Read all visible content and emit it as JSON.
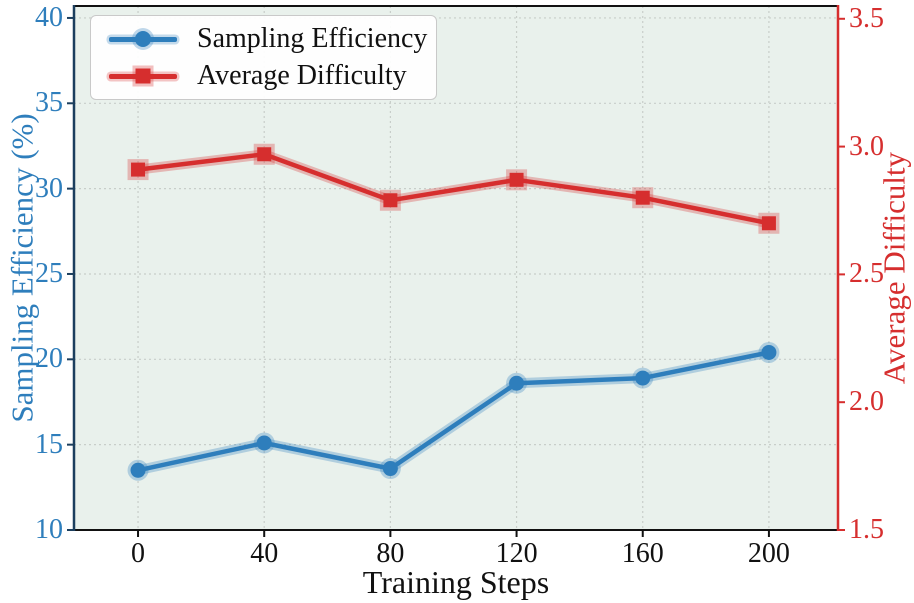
{
  "figure": {
    "background": "#ffffff",
    "plot_background": "#e9f1ec",
    "grid_color": "#c8cec9",
    "top_spine_color": "#111111",
    "bottom_spine_color": "#111111",
    "x_tick_color": "#111111"
  },
  "chart_data": {
    "type": "line",
    "title": "",
    "xlabel": "Training Steps",
    "x": [
      0,
      40,
      80,
      120,
      160,
      200
    ],
    "x_tick_labels": [
      "0",
      "40",
      "80",
      "120",
      "160",
      "200"
    ],
    "x_range": [
      -20.3,
      221.9
    ],
    "grid": true,
    "legend_position": "upper left",
    "left_axis": {
      "label": "Sampling Efficiency (%)",
      "color": "#2e7ebc",
      "spine_color": "#1c3f5e",
      "ticks": [
        40,
        35,
        30,
        25,
        20,
        15,
        10
      ],
      "tick_labels": [
        "40",
        "35",
        "30",
        "25",
        "20",
        "15",
        "10"
      ],
      "range": [
        10,
        40.7
      ]
    },
    "right_axis": {
      "label": "Average Difficulty",
      "color": "#d62e2e",
      "spine_color": "#d62e2e",
      "ticks": [
        3.5,
        3.0,
        2.5,
        2.0,
        1.5
      ],
      "tick_labels": [
        "3.5",
        "3.0",
        "2.5",
        "2.0",
        "1.5"
      ],
      "range": [
        1.5,
        3.55
      ]
    },
    "series": [
      {
        "name": "Sampling Efficiency",
        "axis": "left",
        "marker": "circle",
        "color": "#2e7ebc",
        "values": [
          13.5,
          15.1,
          13.6,
          18.6,
          18.9,
          20.4
        ]
      },
      {
        "name": "Average Difficulty",
        "axis": "right",
        "marker": "square",
        "color": "#d62e2e",
        "values": [
          2.91,
          2.97,
          2.79,
          2.87,
          2.8,
          2.7
        ]
      }
    ]
  }
}
